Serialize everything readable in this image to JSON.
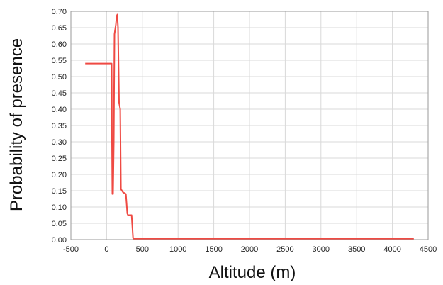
{
  "chart_data": {
    "type": "line",
    "xlabel": "Altitude  (m)",
    "ylabel": "Probability of presence",
    "xlim": [
      -500,
      4500
    ],
    "ylim": [
      0,
      0.7
    ],
    "xticks": [
      -500,
      0,
      500,
      1000,
      1500,
      2000,
      2500,
      3000,
      3500,
      4000,
      4500
    ],
    "yticks": [
      0.0,
      0.05,
      0.1,
      0.15,
      0.2,
      0.25,
      0.3,
      0.35,
      0.4,
      0.45,
      0.5,
      0.55,
      0.6,
      0.65,
      0.7
    ],
    "grid": true,
    "line_color": "#ef4a43",
    "series": [
      {
        "x": [
          -300,
          70,
          75,
          80,
          90,
          100,
          110,
          120,
          130,
          140,
          150,
          160,
          175,
          190,
          200,
          230,
          270,
          290,
          300,
          320,
          350,
          370,
          380,
          400,
          1000,
          2000,
          3000,
          4000,
          4300
        ],
        "y": [
          0.54,
          0.54,
          0.3,
          0.14,
          0.14,
          0.3,
          0.63,
          0.645,
          0.66,
          0.685,
          0.69,
          0.65,
          0.42,
          0.4,
          0.155,
          0.145,
          0.14,
          0.08,
          0.075,
          0.075,
          0.075,
          0.005,
          0.003,
          0.003,
          0.003,
          0.003,
          0.003,
          0.003,
          0.003
        ]
      }
    ]
  }
}
